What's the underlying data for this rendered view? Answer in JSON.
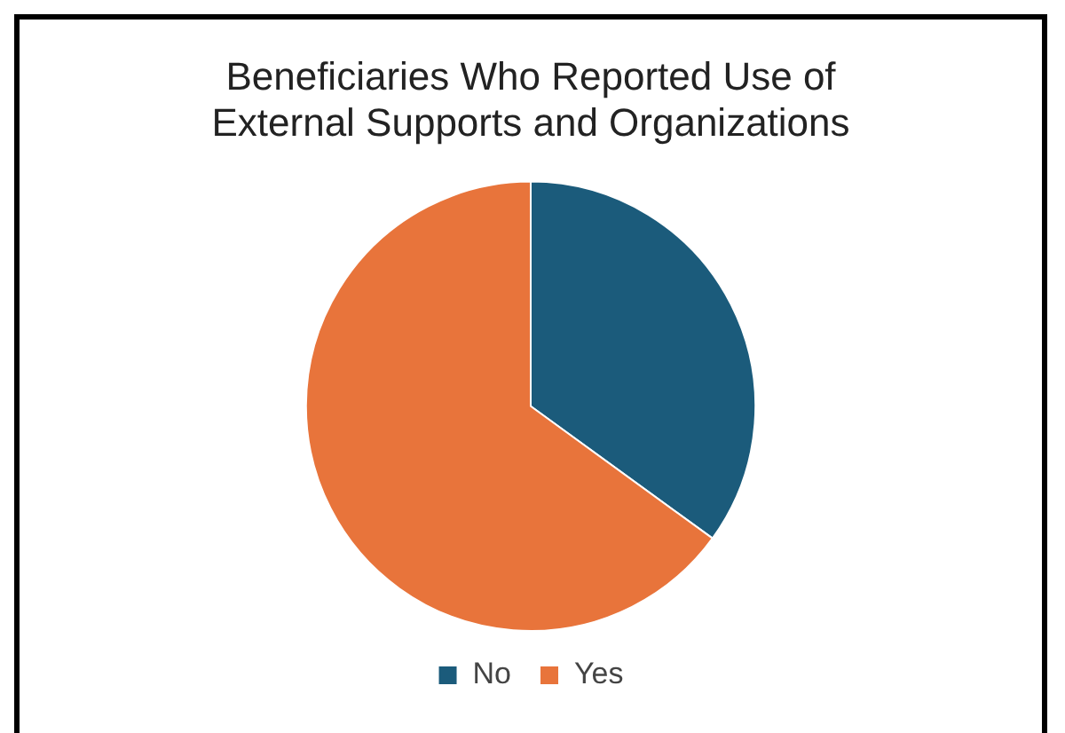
{
  "chart_data": {
    "type": "pie",
    "title": "Beneficiaries Who Reported Use of External Supports and Organizations",
    "categories": [
      "No",
      "Yes"
    ],
    "values": [
      35,
      65
    ],
    "colors": [
      "#1b5b7b",
      "#e8743b"
    ],
    "legend": "bottom"
  }
}
